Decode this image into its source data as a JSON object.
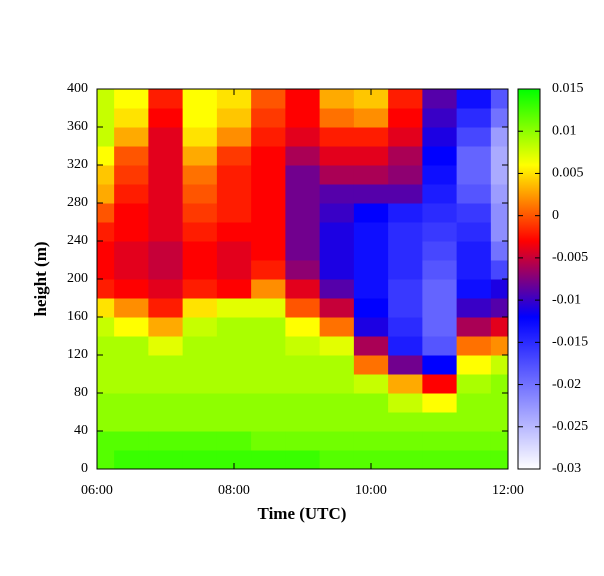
{
  "chart_data": {
    "type": "heatmap",
    "xlabel": "Time (UTC)",
    "ylabel": "height (m)",
    "x": [
      6,
      6.5,
      7,
      7.5,
      8,
      8.5,
      9,
      9.5,
      10,
      10.5,
      11,
      11.5,
      12
    ],
    "y": [
      10,
      30,
      50,
      70,
      90,
      110,
      130,
      150,
      170,
      190,
      210,
      230,
      250,
      270,
      290,
      310,
      330,
      350,
      370,
      390
    ],
    "z": [
      [
        0.012,
        0.013,
        0.013,
        0.013,
        0.013,
        0.013,
        0.013,
        0.012,
        0.012,
        0.012,
        0.012,
        0.012,
        0.012
      ],
      [
        0.012,
        0.012,
        0.012,
        0.012,
        0.012,
        0.011,
        0.011,
        0.011,
        0.011,
        0.011,
        0.011,
        0.011,
        0.011
      ],
      [
        0.01,
        0.01,
        0.01,
        0.01,
        0.01,
        0.01,
        0.01,
        0.01,
        0.01,
        0.01,
        0.01,
        0.01,
        0.01
      ],
      [
        0.01,
        0.01,
        0.01,
        0.01,
        0.01,
        0.01,
        0.01,
        0.01,
        0.01,
        0.008,
        0.006,
        0.01,
        0.01
      ],
      [
        0.009,
        0.009,
        0.009,
        0.009,
        0.009,
        0.009,
        0.009,
        0.009,
        0.008,
        0.003,
        -0.003,
        0.009,
        0.01
      ],
      [
        0.009,
        0.009,
        0.009,
        0.009,
        0.009,
        0.009,
        0.009,
        0.009,
        0.001,
        -0.008,
        -0.012,
        0.006,
        0.008
      ],
      [
        0.009,
        0.009,
        0.007,
        0.009,
        0.009,
        0.009,
        0.008,
        0.007,
        -0.006,
        -0.014,
        -0.018,
        0.001,
        0.002
      ],
      [
        0.008,
        0.006,
        0.003,
        0.008,
        0.009,
        0.009,
        0.006,
        0.001,
        -0.011,
        -0.015,
        -0.019,
        -0.006,
        -0.004
      ],
      [
        0.005,
        0.002,
        -0.002,
        0.005,
        0.007,
        0.007,
        0.0,
        -0.005,
        -0.012,
        -0.016,
        -0.019,
        -0.01,
        -0.009
      ],
      [
        -0.002,
        -0.003,
        -0.004,
        -0.002,
        -0.003,
        0.002,
        -0.004,
        -0.009,
        -0.013,
        -0.016,
        -0.019,
        -0.013,
        -0.011
      ],
      [
        -0.003,
        -0.004,
        -0.005,
        -0.003,
        -0.004,
        -0.002,
        -0.007,
        -0.011,
        -0.013,
        -0.015,
        -0.018,
        -0.014,
        -0.017
      ],
      [
        -0.003,
        -0.004,
        -0.005,
        -0.003,
        -0.004,
        -0.003,
        -0.008,
        -0.011,
        -0.013,
        -0.015,
        -0.017,
        -0.014,
        -0.02
      ],
      [
        -0.002,
        -0.003,
        -0.004,
        -0.002,
        -0.003,
        -0.003,
        -0.008,
        -0.011,
        -0.013,
        -0.015,
        -0.016,
        -0.015,
        -0.022
      ],
      [
        0.0,
        -0.003,
        -0.004,
        -0.001,
        -0.002,
        -0.003,
        -0.008,
        -0.01,
        -0.012,
        -0.014,
        -0.015,
        -0.016,
        -0.022
      ],
      [
        0.003,
        -0.002,
        -0.004,
        0.0,
        -0.002,
        -0.003,
        -0.008,
        -0.009,
        -0.009,
        -0.009,
        -0.014,
        -0.018,
        -0.023
      ],
      [
        0.004,
        -0.001,
        -0.004,
        0.001,
        -0.002,
        -0.003,
        -0.008,
        -0.006,
        -0.006,
        -0.007,
        -0.013,
        -0.019,
        -0.024
      ],
      [
        0.006,
        0.0,
        -0.004,
        0.003,
        -0.001,
        -0.003,
        -0.006,
        -0.004,
        -0.004,
        -0.006,
        -0.012,
        -0.019,
        -0.024
      ],
      [
        0.008,
        0.003,
        -0.004,
        0.005,
        0.002,
        -0.002,
        -0.004,
        -0.002,
        -0.002,
        -0.004,
        -0.011,
        -0.017,
        -0.023
      ],
      [
        0.008,
        0.005,
        -0.003,
        0.006,
        0.004,
        -0.001,
        -0.003,
        0.001,
        0.002,
        -0.003,
        -0.01,
        -0.015,
        -0.02
      ],
      [
        0.008,
        0.006,
        -0.002,
        0.006,
        0.005,
        0.0,
        -0.003,
        0.003,
        0.004,
        -0.002,
        -0.009,
        -0.013,
        -0.018
      ]
    ],
    "xlim": [
      6,
      12
    ],
    "xticks": [
      {
        "value": 6,
        "label": "06:00"
      },
      {
        "value": 8,
        "label": "08:00"
      },
      {
        "value": 10,
        "label": "10:00"
      },
      {
        "value": 12,
        "label": "12:00"
      }
    ],
    "ylim": [
      0,
      400
    ],
    "yticks": [
      0,
      40,
      80,
      120,
      160,
      200,
      240,
      280,
      320,
      360,
      400
    ],
    "zlim": [
      -0.03,
      0.015
    ],
    "zticks": [
      -0.03,
      -0.025,
      -0.02,
      -0.015,
      -0.01,
      -0.005,
      0,
      0.005,
      0.01,
      0.015
    ],
    "colorscale": [
      "#ffffff",
      "#8080ff",
      "#0000ff",
      "#ff0000",
      "#ffff00",
      "#00ff00"
    ]
  }
}
